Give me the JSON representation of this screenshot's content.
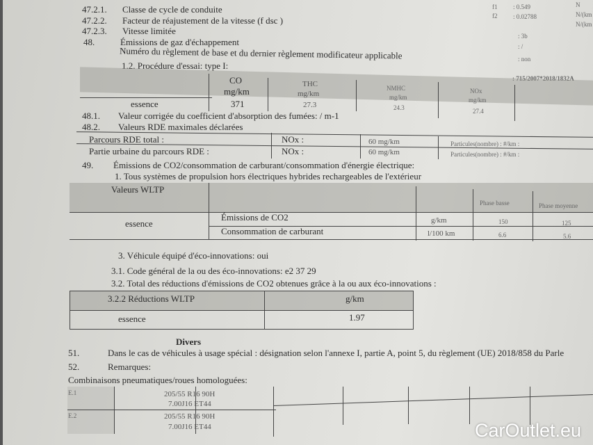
{
  "header_lines": [
    {
      "num": "47.2.1.",
      "label": "Classe de cycle de conduite"
    },
    {
      "num": "47.2.2.",
      "label": "Facteur de réajustement de la vitesse (f dsc )"
    },
    {
      "num": "47.2.3.",
      "label": "Vitesse limitée"
    },
    {
      "num": "48.",
      "label": "Émissions de gaz d'échappement"
    }
  ],
  "regulation_line": "Numéro du règlement de base et du dernier règlement modificateur applicable",
  "procedure": "1.2. Procédure d'essai: type I:",
  "right_values": {
    "f1_label": "f1",
    "f1": ": 0.549",
    "f2_label": "f2",
    "f2": ": 0.02788",
    "unit_n": "N",
    "unit_nkm1": "N/(km",
    "unit_nkm2": "N/(km",
    "cycle": ": 3b",
    "fdsc": ": /",
    "limited": ": non",
    "regulation": ": 715/2007*2018/1832A"
  },
  "emissions_table": {
    "headers": [
      {
        "name": "CO",
        "unit": "mg/km"
      },
      {
        "name": "THC",
        "unit": "mg/km"
      },
      {
        "name": "NMHC",
        "unit": "mg/km"
      },
      {
        "name": "NOx",
        "unit": "mg/km"
      }
    ],
    "row_label": "essence",
    "values": [
      "371",
      "27.3",
      "24.3",
      "27.4"
    ]
  },
  "line_48_1": {
    "num": "48.1.",
    "label": "Valeur corrigée du coefficient d'absorption des fumées: / m-1"
  },
  "line_48_2": {
    "num": "48.2.",
    "label": "Valeurs RDE maximales déclarées"
  },
  "rde_table": [
    {
      "label": "Parcours RDE total :",
      "pollutant": "NOx :",
      "value": "60 mg/km",
      "particles": "Particules(nombre) : #/km :"
    },
    {
      "label": "Partie urbaine du parcours RDE     :",
      "pollutant": "NOx :",
      "value": "60 mg/km",
      "particles": "Particules(nombre) : #/km :"
    }
  ],
  "line_49": {
    "num": "49.",
    "label": "Émissions de CO2/consommation de carburant/consommation d'énergie électrique:"
  },
  "line_49_1": "1. Tous systèmes de propulsion hors électriques hybrides rechargeables de l'extérieur",
  "wltp_table": {
    "title": "Valeurs WLTP",
    "phases": [
      "Phase basse",
      "Phase moyenne"
    ],
    "fuel": "essence",
    "rows": [
      {
        "label": "Émissions de CO2",
        "unit": "g/km",
        "values": [
          "150",
          "125"
        ]
      },
      {
        "label": "Consommation de carburant",
        "unit": "l/100 km",
        "values": [
          "6.6",
          "5.6"
        ]
      }
    ]
  },
  "eco": {
    "line3": "3. Véhicule équipé d'éco-innovations: oui",
    "line31": "3.1. Code général de la ou des éco-innovations: e2 37 29",
    "line32": "3.2. Total des réductions d'émissions de CO2 obtenues grâce à la ou aux éco-innovations :"
  },
  "reductions_table": {
    "title": "3.2.2 Réductions WLTP",
    "unit": "g/km",
    "fuel": "essence",
    "value": "1.97"
  },
  "divers": {
    "title": "Divers",
    "line51_num": "51.",
    "line51": "Dans le cas de véhicules à usage spécial : désignation selon l'annexe I, partie A, point 5, du règlement (UE) 2018/858 du Parle",
    "line52_num": "52.",
    "line52": "Remarques:",
    "tires_title": "Combinaisons pneumatiques/roues homologuées:"
  },
  "tires": [
    {
      "id": "E.1",
      "tire": "205/55 R16 90H",
      "rim": "7.00J16 ET44"
    },
    {
      "id": "E.2",
      "tire": "205/55 R16 90H",
      "rim": "7.00J16 ET44"
    }
  ],
  "watermark": "CarOutlet.eu"
}
